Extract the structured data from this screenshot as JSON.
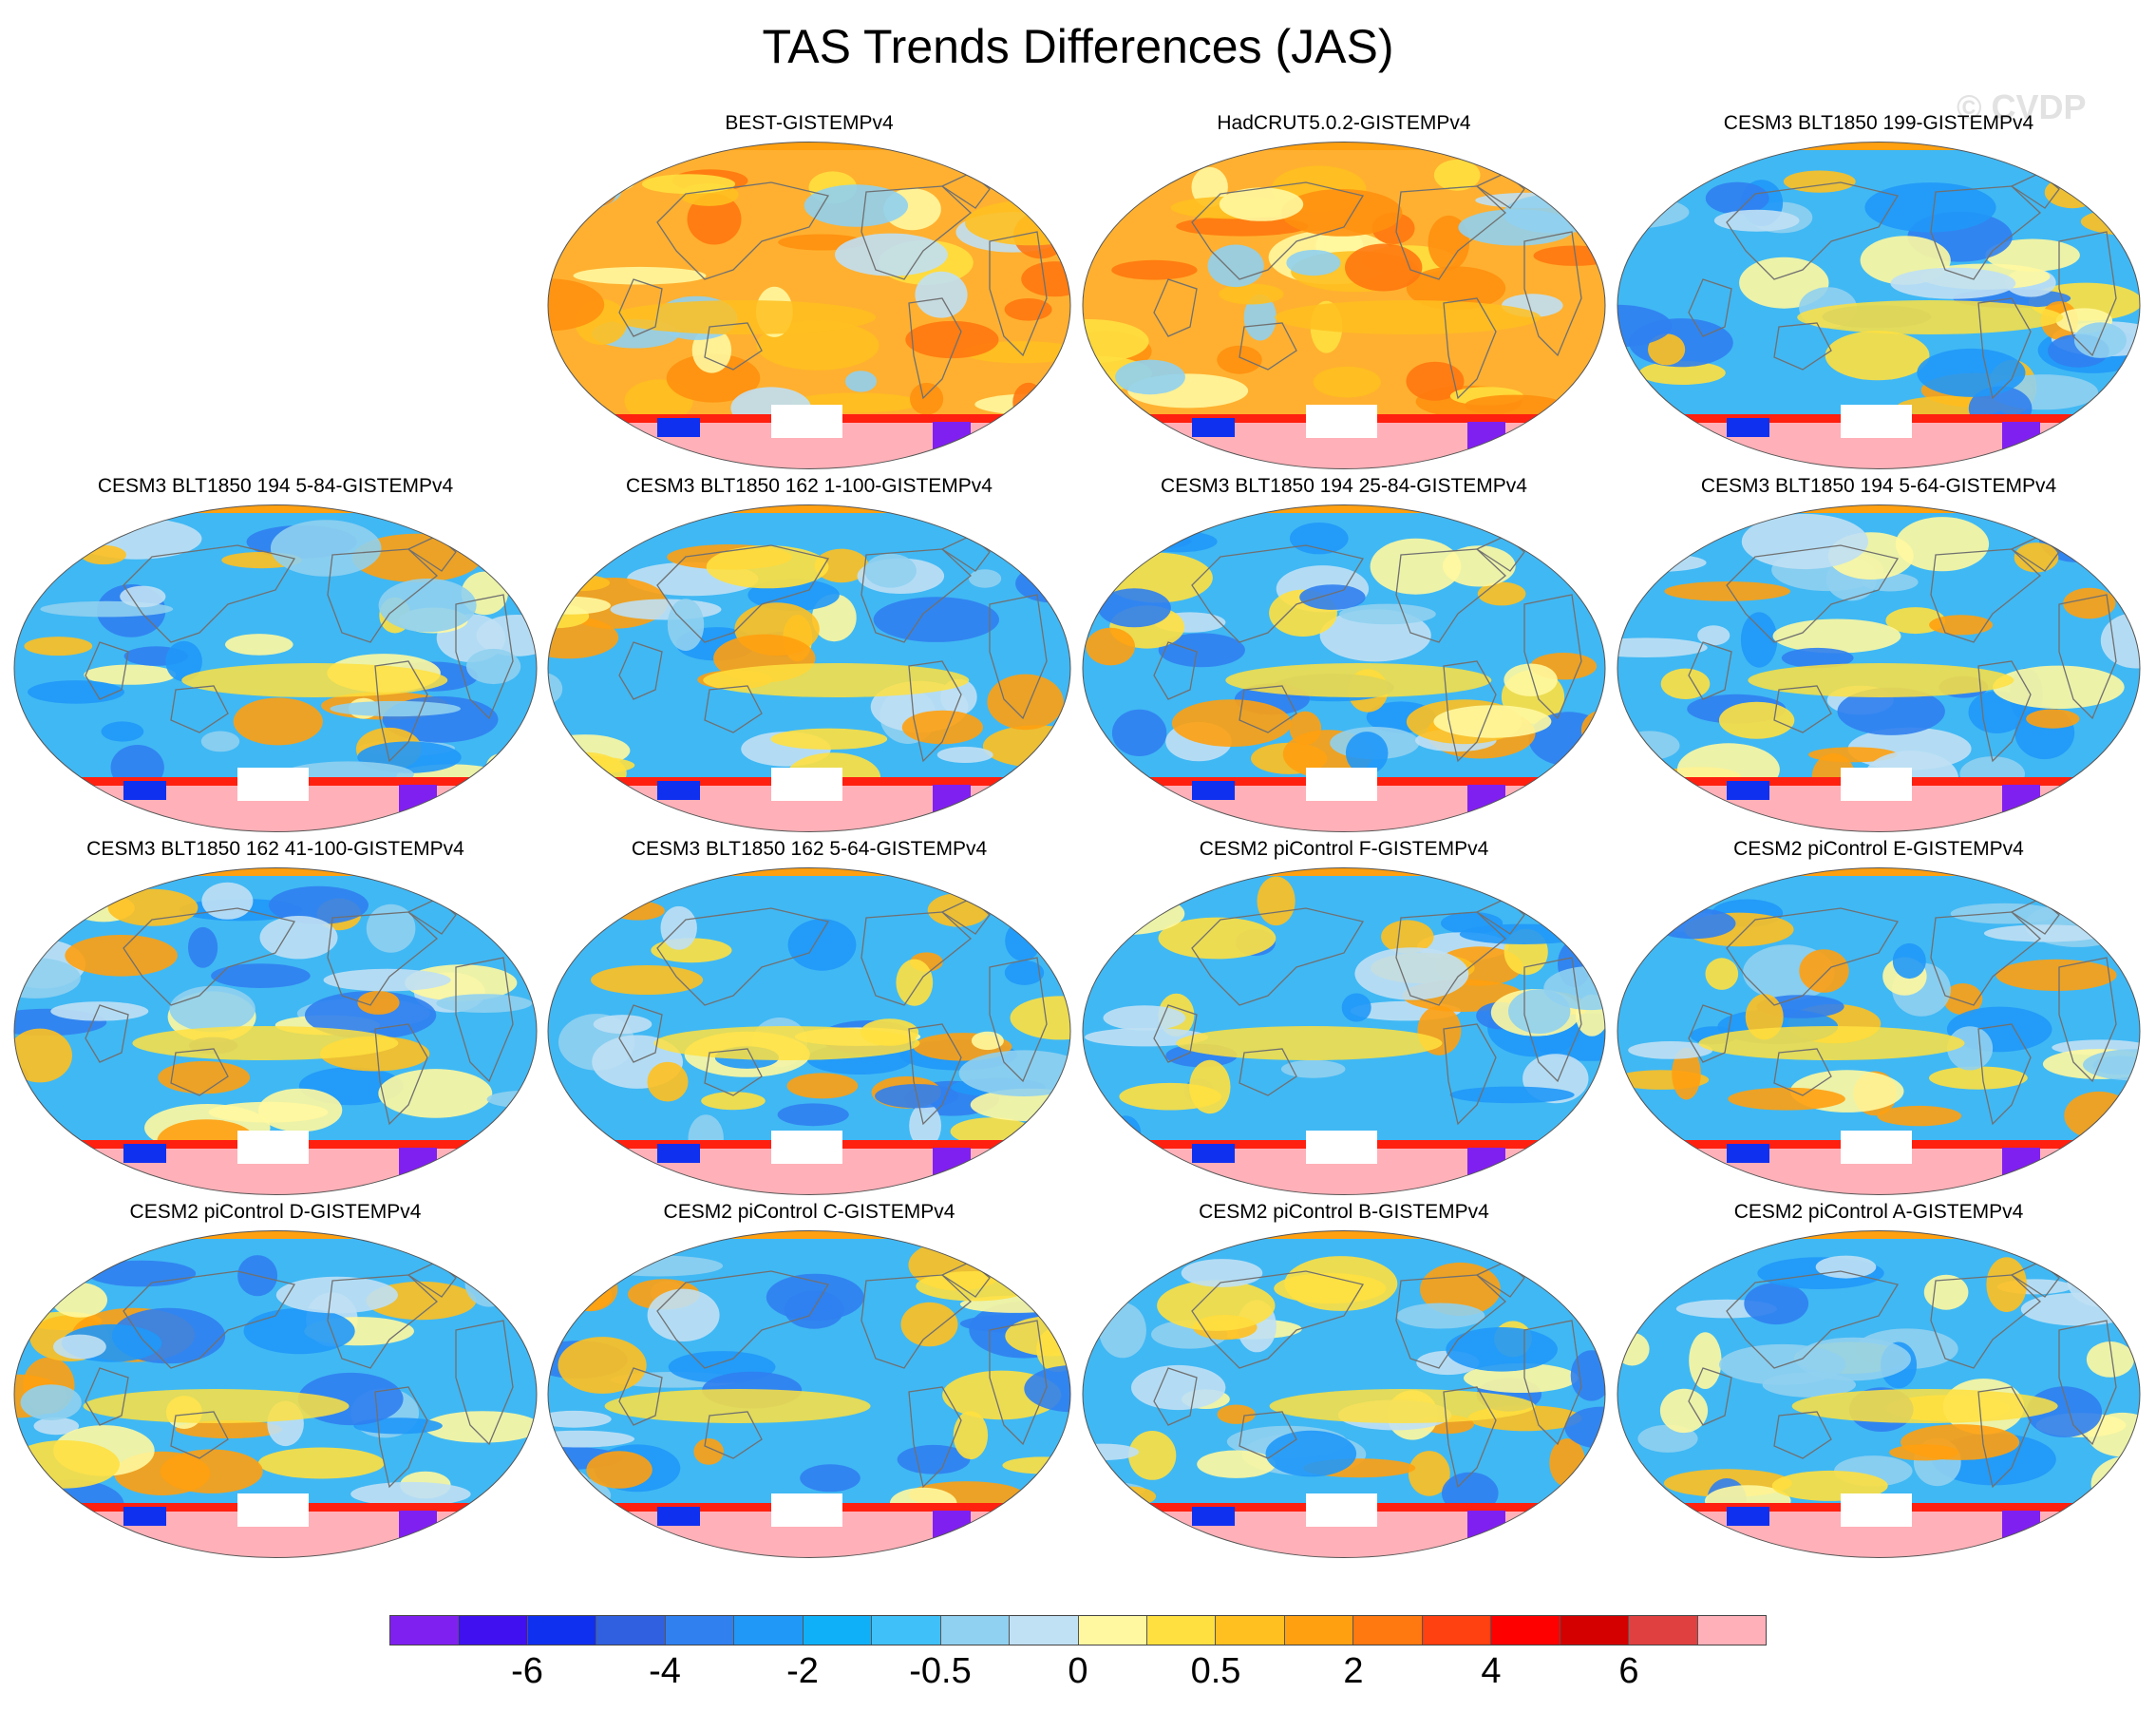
{
  "chart_data": {
    "type": "map",
    "title": "TAS Trends Differences (JAS)",
    "watermark": "© CVDP",
    "projection": "Robinson global map panels",
    "panels": [
      {
        "title": "BEST-GISTEMPv4",
        "row": 0,
        "col": 1,
        "scheme": "warm"
      },
      {
        "title": "HadCRUT5.0.2-GISTEMPv4",
        "row": 0,
        "col": 2,
        "scheme": "warm"
      },
      {
        "title": "CESM3 BLT1850 199-GISTEMPv4",
        "row": 0,
        "col": 3,
        "scheme": "cool"
      },
      {
        "title": "CESM3 BLT1850 194 5-84-GISTEMPv4",
        "row": 1,
        "col": 0,
        "scheme": "cool"
      },
      {
        "title": "CESM3 BLT1850 162 1-100-GISTEMPv4",
        "row": 1,
        "col": 1,
        "scheme": "cool"
      },
      {
        "title": "CESM3 BLT1850 194 25-84-GISTEMPv4",
        "row": 1,
        "col": 2,
        "scheme": "cool"
      },
      {
        "title": "CESM3 BLT1850 194 5-64-GISTEMPv4",
        "row": 1,
        "col": 3,
        "scheme": "cool"
      },
      {
        "title": "CESM3 BLT1850 162 41-100-GISTEMPv4",
        "row": 2,
        "col": 0,
        "scheme": "cool"
      },
      {
        "title": "CESM3 BLT1850 162 5-64-GISTEMPv4",
        "row": 2,
        "col": 1,
        "scheme": "cool"
      },
      {
        "title": "CESM2 piControl F-GISTEMPv4",
        "row": 2,
        "col": 2,
        "scheme": "cool"
      },
      {
        "title": "CESM2 piControl E-GISTEMPv4",
        "row": 2,
        "col": 3,
        "scheme": "cool"
      },
      {
        "title": "CESM2 piControl D-GISTEMPv4",
        "row": 3,
        "col": 0,
        "scheme": "cool"
      },
      {
        "title": "CESM2 piControl C-GISTEMPv4",
        "row": 3,
        "col": 1,
        "scheme": "cool"
      },
      {
        "title": "CESM2 piControl B-GISTEMPv4",
        "row": 3,
        "col": 2,
        "scheme": "cool"
      },
      {
        "title": "CESM2 piControl A-GISTEMPv4",
        "row": 3,
        "col": 3,
        "scheme": "cool"
      }
    ],
    "colorbar": {
      "colors": [
        "#8020f0",
        "#4010f0",
        "#1030f0",
        "#3060e0",
        "#3080f0",
        "#2098f8",
        "#10b0f8",
        "#40c0f8",
        "#90d0f0",
        "#c0e0f4",
        "#fff8a0",
        "#ffe040",
        "#ffc020",
        "#ffa010",
        "#ff7810",
        "#ff4010",
        "#ff0000",
        "#d40000",
        "#e04040",
        "#ffb0b8"
      ],
      "tick_labels": [
        "-6",
        "-4",
        "-2",
        "-0.5",
        "0",
        "0.5",
        "2",
        "4",
        "6"
      ],
      "tick_boundaries": [
        2,
        4,
        6,
        8,
        10,
        12,
        14,
        16,
        18
      ]
    }
  }
}
